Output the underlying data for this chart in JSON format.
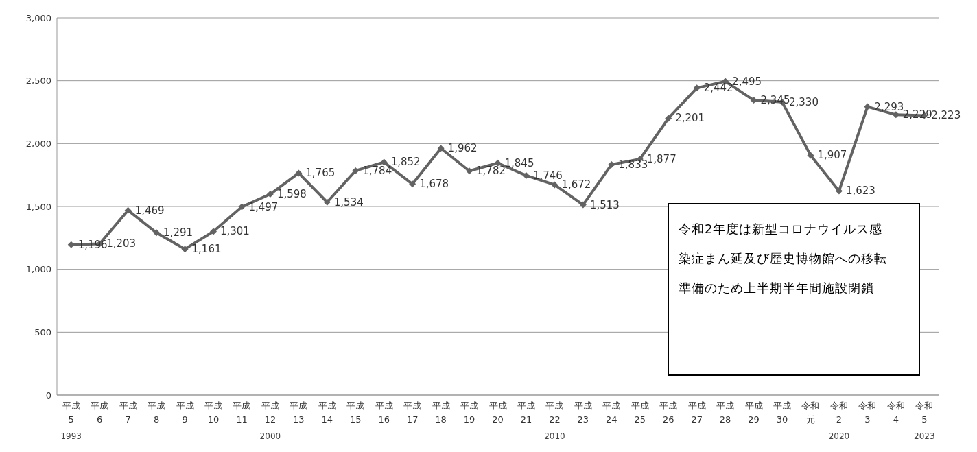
{
  "chart_data": {
    "type": "line",
    "categories": [
      "平成5",
      "平成6",
      "平成7",
      "平成8",
      "平成9",
      "平成10",
      "平成11",
      "平成12",
      "平成13",
      "平成14",
      "平成15",
      "平成16",
      "平成17",
      "平成18",
      "平成19",
      "平成20",
      "平成21",
      "平成22",
      "平成23",
      "平成24",
      "平成25",
      "平成26",
      "平成27",
      "平成28",
      "平成29",
      "平成30",
      "令和元",
      "令和2",
      "令和3",
      "令和4",
      "令和5"
    ],
    "series": [
      {
        "color": "#636363",
        "values": [
          1196,
          1203,
          1469,
          1291,
          1161,
          1301,
          1497,
          1598,
          1765,
          1534,
          1784,
          1852,
          1678,
          1962,
          1782,
          1845,
          1746,
          1672,
          1513,
          1833,
          1877,
          2201,
          2442,
          2495,
          2345,
          2330,
          1907,
          1623,
          2293,
          2229,
          2223
        ],
        "value_labels": [
          "1,196",
          "1,203",
          "1,469",
          "1,291",
          "1,161",
          "1,301",
          "1,497",
          "1,598",
          "1,765",
          "1,534",
          "1,784",
          "1,852",
          "1,678",
          "1,962",
          "1,782",
          "1,845",
          "1,746",
          "1,672",
          "1,513",
          "1,833",
          "1,877",
          "2,201",
          "2,442",
          "2,495",
          "2,345",
          "2,330",
          "1,907",
          "1,623",
          "2,293",
          "2,229",
          "2,223"
        ]
      }
    ],
    "ylim": [
      0,
      3000
    ],
    "yticks": [
      0,
      500,
      {
        "value": 1000,
        "label": "1,000"
      },
      {
        "value": 1500,
        "label": "1,500"
      },
      {
        "value": 2000,
        "label": "2,000"
      },
      {
        "value": 2500,
        "label": "2,500"
      },
      {
        "value": 3000,
        "label": "3,000"
      }
    ],
    "x2lim": [
      1992.5,
      2023.5
    ],
    "x2ticks": [
      1993,
      2000,
      2010,
      2020,
      2023
    ],
    "grid": "y",
    "marker": "diamond",
    "line_style": "solid",
    "annotations": [
      "令和2年度は新型コロナウイルス感染症まん延及び歴史博物館への移転準備のため上半期半年間施設閉鎖"
    ]
  }
}
